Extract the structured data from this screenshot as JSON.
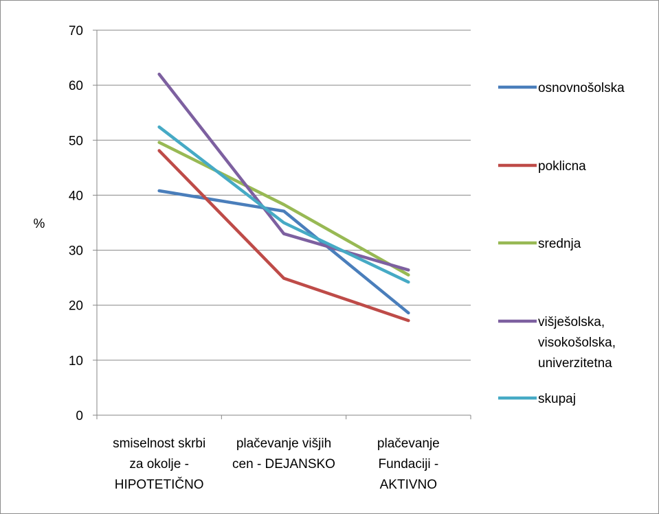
{
  "chart_data": {
    "type": "line",
    "title": "",
    "xlabel": "",
    "ylabel": "%",
    "ylim": [
      0,
      70
    ],
    "yticks": [
      0,
      10,
      20,
      30,
      40,
      50,
      60,
      70
    ],
    "grid": true,
    "legend_position": "right",
    "categories": [
      [
        "smiselnost skrbi",
        "za okolje -",
        "HIPOTETIČNO"
      ],
      [
        "plačevanje višjih",
        "cen - DEJANSKO"
      ],
      [
        "plačevanje",
        "Fundaciji -",
        "AKTIVNO"
      ]
    ],
    "series": [
      {
        "name": [
          "osnovnošolska"
        ],
        "color": "#4a7ebb",
        "values": [
          40.8,
          37.1,
          18.6
        ]
      },
      {
        "name": [
          "poklicna"
        ],
        "color": "#be4b48",
        "values": [
          48.1,
          24.9,
          17.2
        ]
      },
      {
        "name": [
          "srednja"
        ],
        "color": "#98b954",
        "values": [
          49.6,
          38.3,
          25.5
        ]
      },
      {
        "name": [
          "višješolska,",
          "visokošolska,",
          "univerzitetna"
        ],
        "color": "#7d60a0",
        "values": [
          62.0,
          33.0,
          26.4
        ]
      },
      {
        "name": [
          "skupaj"
        ],
        "color": "#46aac5",
        "values": [
          52.4,
          35.0,
          24.2
        ]
      }
    ]
  }
}
